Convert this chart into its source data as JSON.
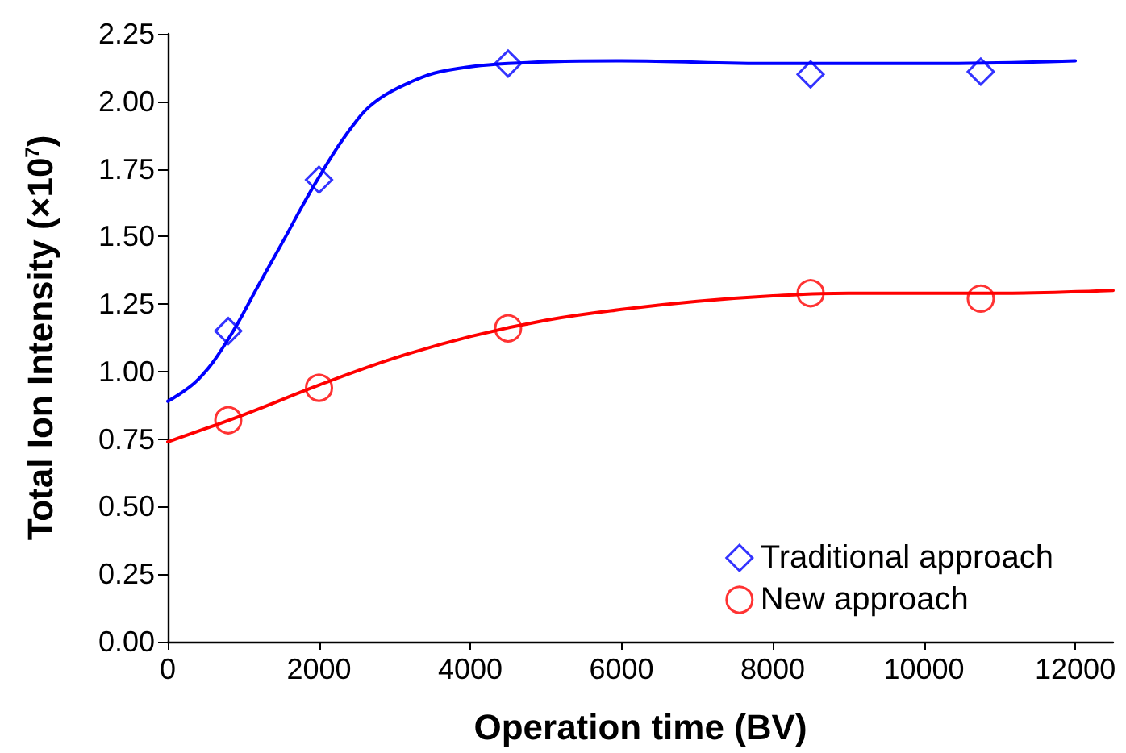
{
  "chart_data": {
    "type": "scatter",
    "xlabel": "Operation time (BV)",
    "ylabel": "Total Ion Intensity (×10$^{7}$)",
    "xlim": [
      0,
      12500
    ],
    "xticks": [
      0,
      2000,
      4000,
      6000,
      8000,
      10000,
      12000
    ],
    "ylim": [
      0,
      2.25
    ],
    "yticks": [
      {
        "value": 0,
        "label": "0.00"
      },
      {
        "value": 0.25,
        "label": "0.25"
      },
      {
        "value": 0.5,
        "label": "0.50"
      },
      {
        "value": 0.75,
        "label": "0.75"
      },
      {
        "value": 1,
        "label": "1.00"
      },
      {
        "value": 1.25,
        "label": "1.25"
      },
      {
        "value": 1.5,
        "label": "1.50"
      },
      {
        "value": 1.75,
        "label": "1.75"
      },
      {
        "value": 2,
        "label": "2.00"
      },
      {
        "value": 2.25,
        "label": "2.25"
      }
    ],
    "grid": false,
    "legend": "bottom right",
    "series": [
      {
        "name": "Traditional approach",
        "color": "#0000ff",
        "marker": "diamond",
        "x": [
          800,
          2000,
          4500,
          8500,
          10750
        ],
        "values": [
          1.15,
          1.71,
          2.14,
          2.1,
          2.11
        ]
      },
      {
        "name": "New approach",
        "color": "#ff0000",
        "marker": "circle",
        "x": [
          800,
          2000,
          4500,
          8500,
          10750
        ],
        "values": [
          0.82,
          0.94,
          1.16,
          1.29,
          1.27
        ]
      },
      {
        "type": "line",
        "color": "#0000ff",
        "marker": "none",
        "x": [
          0,
          400,
          800,
          1200,
          1500,
          2000,
          2500,
          2800,
          3200,
          3600,
          4500,
          6000,
          8000,
          10000,
          12000
        ],
        "values": [
          0.89,
          0.97,
          1.12,
          1.32,
          1.47,
          1.72,
          1.93,
          2.01,
          2.07,
          2.11,
          2.14,
          2.15,
          2.14,
          2.14,
          2.15
        ]
      },
      {
        "type": "line",
        "color": "#ff0000",
        "marker": "none",
        "x": [
          0,
          1000,
          2000,
          3000,
          4000,
          5000,
          6000,
          7000,
          8000,
          9000,
          10000,
          11000,
          12500
        ],
        "values": [
          0.74,
          0.84,
          0.95,
          1.05,
          1.13,
          1.19,
          1.23,
          1.26,
          1.28,
          1.29,
          1.29,
          1.29,
          1.3
        ]
      }
    ]
  }
}
